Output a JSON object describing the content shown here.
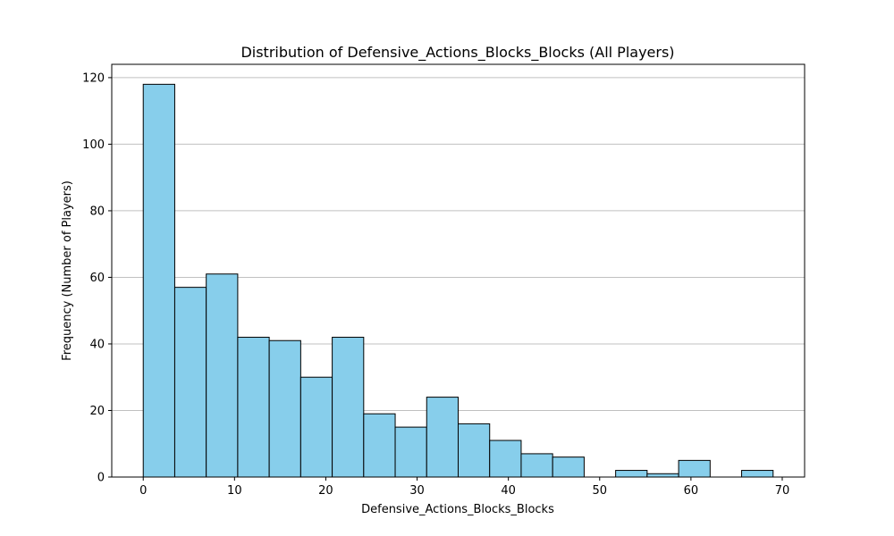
{
  "chart_data": {
    "type": "bar",
    "title": "Distribution of Defensive_Actions_Blocks_Blocks (All Players)",
    "xlabel": "Defensive_Actions_Blocks_Blocks",
    "ylabel": "Frequency (Number of Players)",
    "bin_start": 0,
    "bin_width": 3.45,
    "values": [
      118,
      57,
      61,
      42,
      41,
      30,
      42,
      19,
      15,
      24,
      16,
      11,
      7,
      6,
      0,
      2,
      1,
      5,
      0,
      2
    ],
    "xlim": [
      -3.45,
      72.45
    ],
    "ylim": [
      0,
      124
    ],
    "xticks": [
      0,
      10,
      20,
      30,
      40,
      50,
      60,
      70
    ],
    "yticks": [
      0,
      20,
      40,
      60,
      80,
      100,
      120
    ],
    "grid": "y-axis",
    "bar_color": "#87CEEB",
    "edge_color": "#000000",
    "grid_color": "#c0c0c0"
  }
}
